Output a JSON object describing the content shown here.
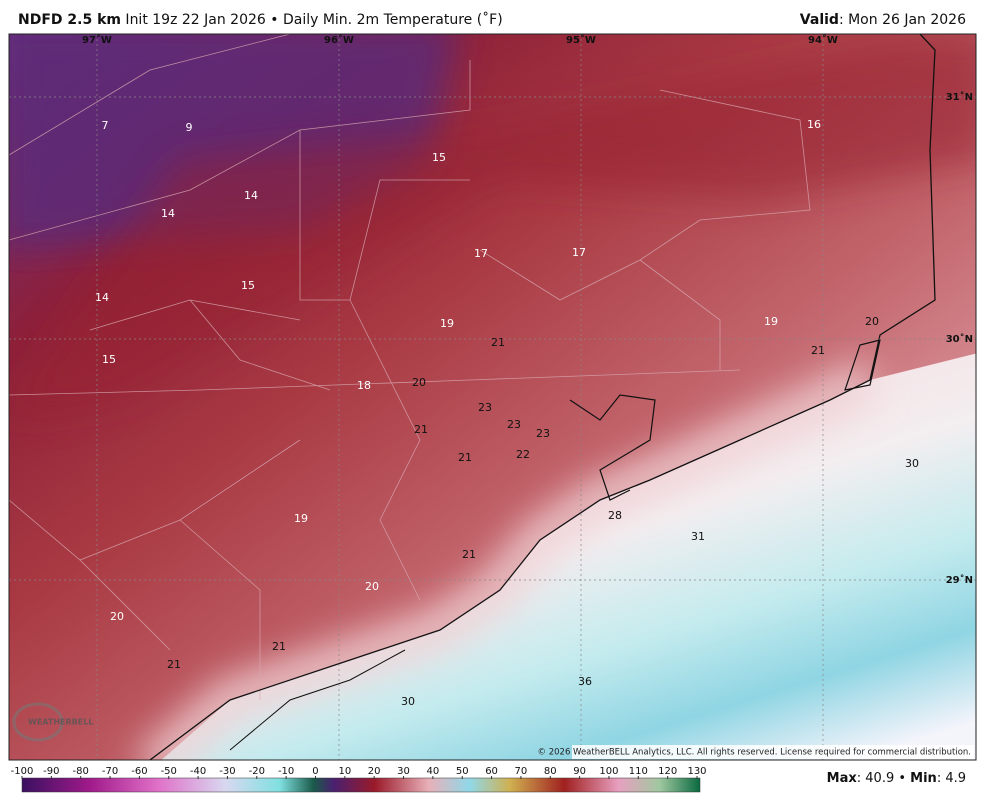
{
  "header": {
    "title": [
      "NDFD 2.5 km",
      " Init 19z 22 Jan 2026 • Daily Min. 2m Temperature (˚F)"
    ],
    "valid": [
      "Valid",
      ": Mon 26 Jan 2026"
    ]
  },
  "map": {
    "longitudes": [
      "97˚W",
      "96˚W",
      "95˚W",
      "94˚W"
    ],
    "latitudes": [
      "31˚N",
      "30˚N",
      "29˚N"
    ],
    "station_values": [
      7,
      9,
      15,
      16,
      14,
      14,
      17,
      17,
      14,
      15,
      19,
      21,
      19,
      20,
      21,
      15,
      18,
      20,
      23,
      23,
      23,
      21,
      22,
      21,
      30,
      28,
      31,
      19,
      21,
      20,
      20,
      21,
      21,
      36,
      30
    ],
    "copyright": "© 2026 WeatherBELL Analytics, LLC. All rights reserved. License required for commercial distribution.",
    "logo": "WEATHERBELL"
  },
  "colorbar": {
    "ticks": [
      -100,
      -90,
      -80,
      -70,
      -60,
      -50,
      -40,
      -30,
      -20,
      -10,
      0,
      10,
      20,
      30,
      40,
      50,
      60,
      70,
      80,
      90,
      100,
      110,
      120,
      130
    ]
  },
  "footer": {
    "stats": [
      "Max",
      ": 40.9 • ",
      "Min",
      ": 4.9"
    ]
  }
}
